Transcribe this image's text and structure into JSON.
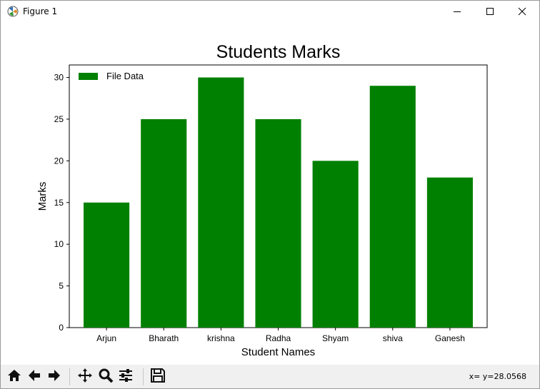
{
  "window": {
    "title": "Figure 1"
  },
  "toolbar": {
    "buttons": [
      "home-icon",
      "back-arrow-icon",
      "forward-arrow-icon",
      "pan-icon",
      "zoom-icon",
      "configure-subplots-icon",
      "save-icon"
    ],
    "coords": "x= y=28.0568"
  },
  "chart_data": {
    "type": "bar",
    "title": "Students Marks",
    "xlabel": "Student Names",
    "ylabel": "Marks",
    "categories": [
      "Arjun",
      "Bharath",
      "krishna",
      "Radha",
      "Shyam",
      "shiva",
      "Ganesh"
    ],
    "series": [
      {
        "name": "File Data",
        "values": [
          15,
          25,
          30,
          25,
          20,
          29,
          18
        ]
      }
    ],
    "ylim": [
      0,
      31.5
    ],
    "yticks": [
      0,
      5,
      10,
      15,
      20,
      25,
      30
    ],
    "legend": "top-left",
    "color": "#008000",
    "grid": false
  }
}
